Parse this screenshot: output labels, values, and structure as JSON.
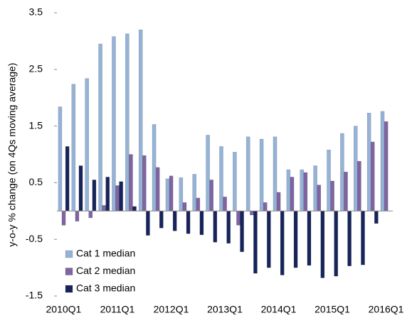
{
  "chart_data": {
    "type": "bar",
    "y_label": "y-o-y % change (on 4Qs moving average)",
    "categories": [
      "2010Q1",
      null,
      null,
      null,
      "2011Q1",
      null,
      null,
      null,
      "2012Q1",
      null,
      null,
      null,
      "2013Q1",
      null,
      null,
      null,
      "2014Q1",
      null,
      null,
      null,
      "2015Q1",
      null,
      null,
      null,
      "2016Q1"
    ],
    "series": [
      {
        "name": "Cat 1 median",
        "color": "#95b3d7",
        "values": [
          1.84,
          2.24,
          2.34,
          2.95,
          3.08,
          3.13,
          3.2,
          1.53,
          0.57,
          0.59,
          0.65,
          1.34,
          1.14,
          1.04,
          1.31,
          1.27,
          1.31,
          0.73,
          0.73,
          0.8,
          1.08,
          1.37,
          1.5,
          1.73,
          1.76
        ]
      },
      {
        "name": "Cat 2 median",
        "color": "#8064a2",
        "values": [
          -0.25,
          -0.18,
          -0.12,
          0.1,
          0.45,
          1.0,
          0.98,
          0.77,
          0.62,
          0.15,
          0.23,
          0.55,
          0.25,
          -0.25,
          -0.07,
          0.15,
          0.33,
          0.6,
          0.68,
          0.46,
          0.53,
          0.69,
          0.88,
          1.22,
          1.58
        ]
      },
      {
        "name": "Cat 3 median",
        "color": "#17245b",
        "values": [
          1.14,
          0.8,
          0.55,
          0.6,
          0.52,
          0.08,
          -0.43,
          -0.3,
          -0.35,
          -0.4,
          -0.42,
          -0.55,
          -0.57,
          -0.72,
          -1.1,
          -1.0,
          -1.13,
          -1.0,
          -0.96,
          -1.18,
          -1.15,
          -0.97,
          -0.95,
          -0.22,
          null
        ]
      }
    ],
    "ylim": [
      -1.5,
      3.5
    ],
    "yticks": [
      -1.5,
      -0.5,
      0.5,
      1.5,
      2.5,
      3.5
    ],
    "grid": false,
    "legend": "lower-left"
  }
}
